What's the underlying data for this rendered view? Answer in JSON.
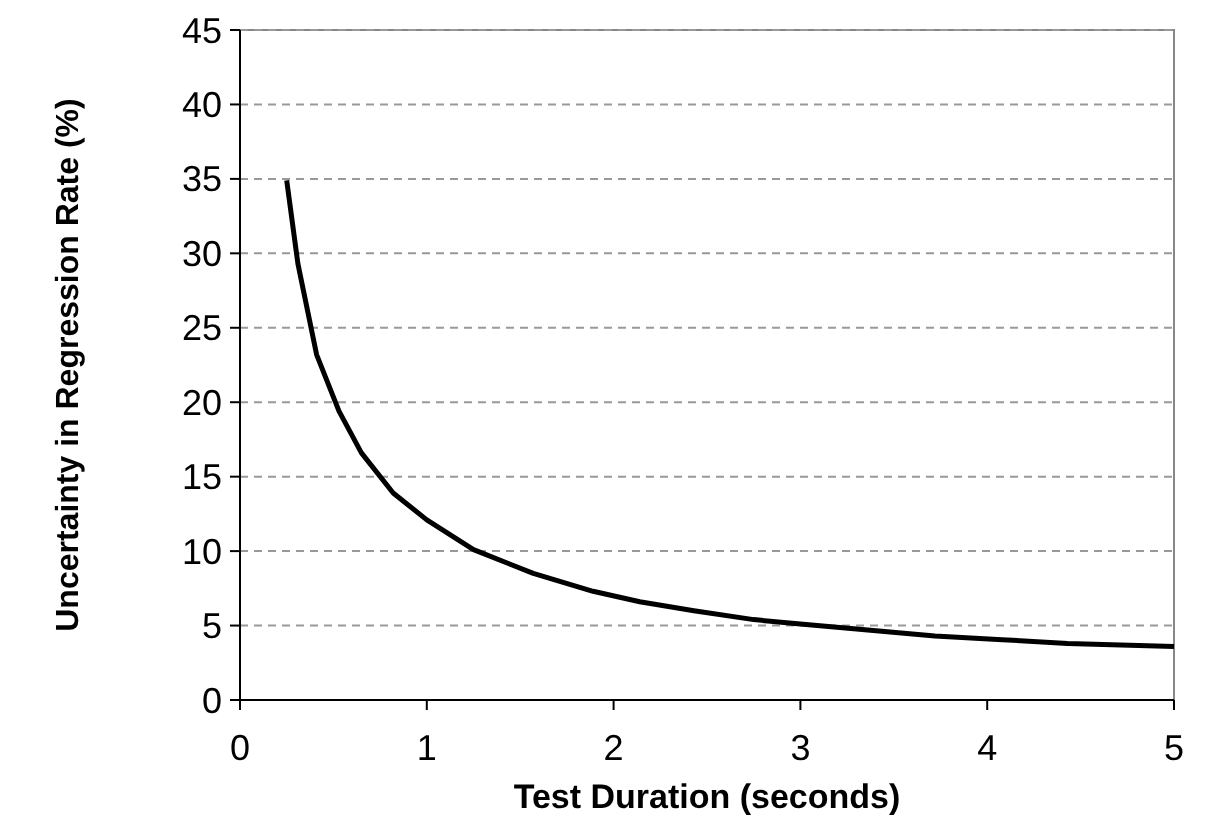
{
  "chart_data": {
    "type": "line",
    "xlabel": "Test Duration (seconds)",
    "ylabel": "Uncertainty in Regression Rate (%)",
    "xlim": [
      0,
      5
    ],
    "xticks": [
      0,
      1,
      2,
      3,
      4,
      5
    ],
    "ylim": [
      0,
      45
    ],
    "yticks": [
      0,
      5,
      10,
      15,
      20,
      25,
      30,
      35,
      40,
      45
    ],
    "grid": "y",
    "marker": "none",
    "line_style": "solid",
    "series": [
      {
        "color": "#000000",
        "x": [
          0.25,
          0.31,
          0.41,
          0.53,
          0.65,
          0.82,
          1.0,
          1.25,
          1.57,
          1.89,
          2.14,
          2.43,
          2.75,
          3.0,
          3.36,
          3.72,
          4.08,
          4.43,
          5.0
        ],
        "values": [
          34.9,
          29.3,
          23.2,
          19.4,
          16.6,
          13.9,
          12.1,
          10.1,
          8.5,
          7.3,
          6.6,
          6.0,
          5.4,
          5.1,
          4.7,
          4.3,
          4.05,
          3.8,
          3.6
        ]
      }
    ]
  }
}
